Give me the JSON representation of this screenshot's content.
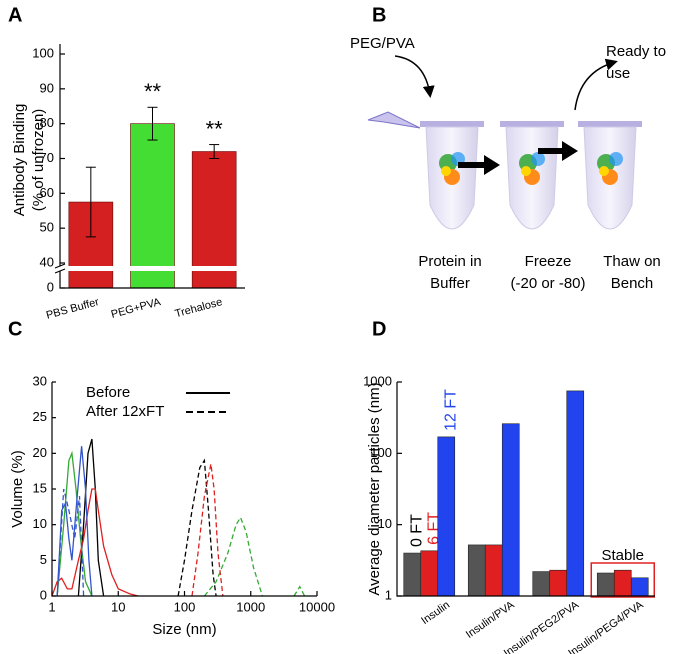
{
  "panel_labels": [
    "A",
    "B",
    "C",
    "D"
  ],
  "chart_data": [
    {
      "type": "bar",
      "y_label": [
        "Antibody Binding",
        "(% of unfrozen)"
      ],
      "categories": [
        "PBS Buffer",
        "PEG+PVA",
        "Trehalose"
      ],
      "values": [
        57.5,
        80,
        72
      ],
      "errors": [
        10,
        4.7,
        2
      ],
      "colors": [
        "#d42020",
        "#44dd33",
        "#d42020"
      ],
      "significance": [
        null,
        "**",
        "**"
      ],
      "ylim": [
        0,
        100
      ],
      "axis_break": [
        0,
        40
      ],
      "yticks": [
        0,
        40,
        50,
        60,
        70,
        80,
        90,
        100
      ]
    },
    {
      "type": "line",
      "x_label": "Size (nm)",
      "y_label": "Volume (%)",
      "x_log": true,
      "xlim": [
        1,
        10000
      ],
      "ylim": [
        0,
        30
      ],
      "xticks": [
        1,
        10,
        100,
        1000,
        10000
      ],
      "yticks": [
        0,
        5,
        10,
        15,
        20,
        25,
        30
      ],
      "legend": [
        {
          "label": "Before",
          "dashed": false
        },
        {
          "label": "After 12xFT",
          "dashed": true
        }
      ],
      "series": [
        {
          "color": "#000000",
          "dashed": false,
          "x": [
            2.5,
            3,
            3.5,
            4,
            4.5,
            5,
            6
          ],
          "values": [
            0,
            10,
            20,
            22,
            15,
            5,
            0
          ]
        },
        {
          "color": "#e02020",
          "dashed": false,
          "x": [
            1,
            1.2,
            1.4,
            1.7,
            2,
            2.5,
            3,
            3.5,
            4,
            4.5,
            5,
            6,
            8,
            10,
            15,
            20
          ],
          "values": [
            0,
            2,
            2.5,
            1,
            1,
            5,
            8,
            12,
            15,
            15,
            12,
            7,
            3,
            1,
            0.3,
            0
          ]
        },
        {
          "color": "#33aa33",
          "dashed": false,
          "x": [
            1.2,
            1.5,
            1.8,
            2,
            2.3,
            2.7,
            3.2,
            4
          ],
          "values": [
            0,
            10,
            19,
            20,
            15,
            8,
            2,
            0
          ]
        },
        {
          "color": "#3355cc",
          "dashed": false,
          "x": [
            1.2,
            1.4,
            1.6,
            1.8,
            2,
            2.4,
            2.8,
            3.2,
            3.6,
            4
          ],
          "values": [
            0,
            12,
            13,
            8,
            5,
            14,
            21,
            15,
            5,
            0
          ]
        },
        {
          "color": "#3355cc",
          "dashed": true,
          "x": [
            1.2,
            1.5,
            1.8,
            2.2,
            2.6,
            3
          ],
          "values": [
            0,
            15,
            12,
            8,
            14,
            0
          ]
        },
        {
          "color": "#000000",
          "dashed": true,
          "x": [
            80,
            100,
            130,
            170,
            200,
            230,
            270,
            300
          ],
          "values": [
            0,
            5,
            12,
            18,
            19,
            12,
            3,
            0
          ]
        },
        {
          "color": "#e02020",
          "dashed": true,
          "x": [
            130,
            160,
            200,
            250,
            280,
            320,
            380
          ],
          "values": [
            0,
            6,
            14,
            18.5,
            15,
            6,
            0
          ]
        },
        {
          "color": "#33aa33",
          "dashed": true,
          "x": [
            200,
            300,
            450,
            600,
            700,
            850,
            1100,
            1500
          ],
          "values": [
            0,
            2,
            6,
            10,
            11,
            9,
            4,
            0
          ]
        },
        {
          "color": "#33aa33",
          "dashed": true,
          "x": [
            4500,
            5500,
            6500
          ],
          "values": [
            0,
            1.3,
            0
          ]
        }
      ]
    },
    {
      "type": "bar",
      "y_label": "Average diameter particles (nm)",
      "y_log": true,
      "categories": [
        "Insulin",
        "Insulin/PVA",
        "Insulin/PEG2/PVA",
        "Insulin/PEG4/PVA"
      ],
      "ylim": [
        1,
        1000
      ],
      "yticks": [
        1,
        10,
        100,
        1000
      ],
      "annotation": "Stable",
      "series": [
        {
          "name": "0 FT",
          "color": "#555555",
          "values": [
            4,
            5.2,
            2.2,
            2.1
          ]
        },
        {
          "name": "6 FT",
          "color": "#e02020",
          "values": [
            4.3,
            5.2,
            2.3,
            2.3
          ]
        },
        {
          "name": "12 FT",
          "color": "#2244ee",
          "values": [
            170,
            260,
            750,
            1.8
          ]
        }
      ]
    }
  ],
  "diagram": {
    "additive": "PEG/PVA",
    "ready": [
      "Ready to",
      "use"
    ],
    "steps": [
      [
        "Protein in",
        "Buffer"
      ],
      [
        "Freeze",
        "(-20 or -80)"
      ],
      [
        "Thaw on",
        "Bench"
      ]
    ]
  }
}
